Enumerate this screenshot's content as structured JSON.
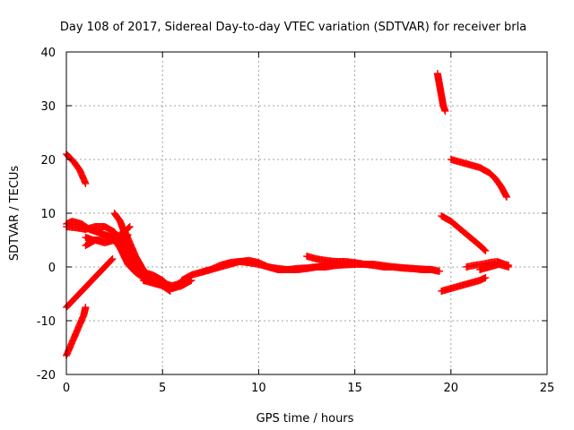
{
  "chart_data": {
    "type": "scatter",
    "title": "Day 108 of 2017, Sidereal Day-to-day VTEC variation (SDTVAR) for receiver brla",
    "xlabel": "GPS time / hours",
    "ylabel": "SDTVAR / TECUs",
    "xlim": [
      0,
      25
    ],
    "ylim": [
      -20,
      40
    ],
    "xticks": [
      0,
      5,
      10,
      15,
      20,
      25
    ],
    "yticks": [
      -20,
      -10,
      0,
      10,
      20,
      30,
      40
    ],
    "grid": true,
    "legend": "none",
    "marker": "plus",
    "color": "#ff0000",
    "series": [
      {
        "x": [
          0.0,
          0.4,
          0.7,
          1.0
        ],
        "y": [
          21.0,
          19.5,
          18.0,
          15.5
        ]
      },
      {
        "x": [
          0.0,
          0.3,
          0.6,
          0.9,
          1.0
        ],
        "y": [
          -16.5,
          -14.0,
          -11.5,
          -9.0,
          -7.5
        ]
      },
      {
        "x": [
          0.0,
          0.4,
          0.8,
          1.2,
          1.6,
          2.0,
          2.4
        ],
        "y": [
          -7.5,
          -6.0,
          -4.5,
          -3.0,
          -1.5,
          0.0,
          1.5
        ]
      },
      {
        "x": [
          0.0,
          0.3,
          0.8,
          1.2,
          1.6,
          2.0,
          2.4,
          2.8,
          3.2,
          3.6,
          4.0,
          4.5,
          5.0,
          5.5,
          6.0
        ],
        "y": [
          8.0,
          8.5,
          8.0,
          7.0,
          6.5,
          6.0,
          5.5,
          3.5,
          0.5,
          -1.0,
          -2.0,
          -2.5,
          -3.0,
          -3.5,
          -3.0
        ]
      },
      {
        "x": [
          0.0,
          0.5,
          1.0,
          1.5,
          2.0,
          2.5,
          3.0,
          3.5,
          4.0,
          4.5,
          5.0,
          5.5,
          6.0,
          6.5
        ],
        "y": [
          7.5,
          7.3,
          7.0,
          7.5,
          7.5,
          6.5,
          3.5,
          0.5,
          -1.0,
          -1.5,
          -2.5,
          -4.0,
          -3.5,
          -2.5
        ]
      },
      {
        "x": [
          1.0,
          1.5,
          2.0,
          2.5,
          3.0,
          3.2
        ],
        "y": [
          4.0,
          5.0,
          4.5,
          5.0,
          5.0,
          6.0
        ]
      },
      {
        "x": [
          1.0,
          1.4,
          1.8,
          2.2,
          2.6,
          3.0,
          3.3
        ],
        "y": [
          5.5,
          5.0,
          5.0,
          5.0,
          5.5,
          6.5,
          7.5
        ]
      },
      {
        "x": [
          2.5,
          2.8,
          3.0,
          3.2,
          3.4,
          3.8,
          4.2,
          4.6,
          5.0,
          5.4
        ],
        "y": [
          10.0,
          8.5,
          6.5,
          4.0,
          2.0,
          0.0,
          -1.5,
          -2.5,
          -3.5,
          -4.5
        ]
      },
      {
        "x": [
          3.0,
          3.3,
          3.6,
          4.0,
          4.5
        ],
        "y": [
          7.0,
          4.5,
          2.0,
          -0.5,
          -2.5
        ]
      },
      {
        "x": [
          4.0,
          4.5,
          5.0,
          5.5,
          6.0,
          6.5
        ],
        "y": [
          -2.5,
          -3.0,
          -3.5,
          -4.0,
          -3.0,
          -2.5
        ]
      },
      {
        "x": [
          6.0,
          6.5,
          7.0,
          7.5,
          8.0,
          8.5,
          9.0,
          9.5,
          10.0,
          10.5,
          11.0,
          11.5,
          12.0,
          12.5,
          13.0
        ],
        "y": [
          -2.5,
          -1.5,
          -1.0,
          -0.5,
          0.0,
          0.5,
          1.0,
          1.2,
          0.8,
          0.0,
          -0.3,
          -0.5,
          -0.5,
          -0.3,
          0.0
        ]
      },
      {
        "x": [
          7.0,
          7.5,
          8.0,
          8.5,
          9.0,
          9.5,
          10.0,
          10.5,
          11.0,
          11.5,
          12.0,
          12.5,
          13.0,
          13.5,
          14.0,
          14.5,
          15.0
        ],
        "y": [
          -1.0,
          -0.5,
          0.3,
          0.8,
          1.0,
          0.8,
          0.5,
          0.0,
          -0.5,
          -0.5,
          -0.3,
          -0.2,
          0.0,
          0.0,
          0.3,
          0.5,
          0.5
        ]
      },
      {
        "x": [
          12.5,
          13.0,
          13.5,
          14.0,
          14.5,
          15.0,
          15.5,
          16.0,
          16.5,
          17.0,
          17.5,
          18.0,
          18.5,
          19.0,
          19.4
        ],
        "y": [
          2.0,
          1.5,
          1.2,
          1.0,
          1.0,
          0.8,
          0.5,
          0.3,
          0.0,
          0.0,
          -0.2,
          -0.3,
          -0.5,
          -0.5,
          -0.8
        ]
      },
      {
        "x": [
          13.0,
          14.0,
          15.0,
          16.0,
          17.0,
          18.0,
          19.0,
          19.4
        ],
        "y": [
          0.0,
          0.3,
          0.5,
          0.5,
          0.0,
          -0.3,
          -0.5,
          -0.8
        ]
      },
      {
        "x": [
          19.3,
          19.4,
          19.5,
          19.6,
          19.7
        ],
        "y": [
          36.0,
          34.0,
          32.0,
          30.0,
          29.0
        ]
      },
      {
        "x": [
          20.0,
          20.5,
          21.0,
          21.5,
          22.0,
          22.3,
          22.6,
          22.9
        ],
        "y": [
          20.0,
          19.5,
          19.0,
          18.5,
          17.5,
          16.5,
          15.0,
          13.0
        ]
      },
      {
        "x": [
          19.5,
          20.0,
          20.5,
          21.0,
          21.5,
          21.8
        ],
        "y": [
          9.5,
          8.5,
          7.0,
          5.5,
          4.0,
          3.0
        ]
      },
      {
        "x": [
          19.5,
          20.0,
          20.5,
          21.0,
          21.5,
          21.8
        ],
        "y": [
          -4.5,
          -4.0,
          -3.5,
          -3.0,
          -2.5,
          -2.0
        ]
      },
      {
        "x": [
          20.8,
          21.2,
          21.6,
          22.0,
          22.4,
          22.8,
          23.0
        ],
        "y": [
          0.0,
          0.3,
          0.5,
          0.8,
          1.0,
          0.5,
          0.3
        ]
      },
      {
        "x": [
          21.5,
          22.0,
          22.5,
          23.0
        ],
        "y": [
          -0.5,
          0.0,
          0.5,
          0.0
        ]
      }
    ]
  }
}
